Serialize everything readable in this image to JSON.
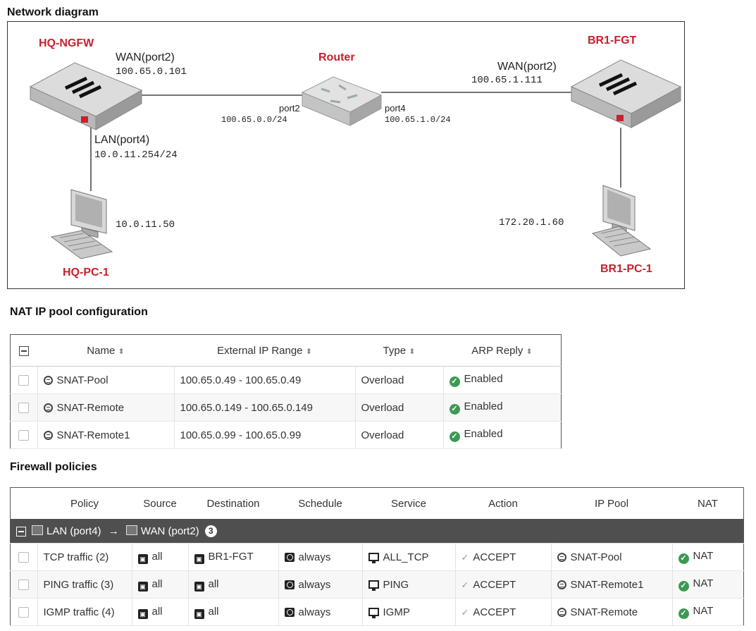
{
  "sections": {
    "network_title": "Network diagram",
    "pool_title": "NAT IP pool configuration",
    "policy_title": "Firewall policies"
  },
  "diagram": {
    "devices": {
      "hq_fw": "HQ-NGFW",
      "router": "Router",
      "br_fw": "BR1-FGT",
      "hq_pc": "HQ-PC-1",
      "br_pc": "BR1-PC-1"
    },
    "hq_wan": {
      "name": "WAN(port2)",
      "ip": "100.65.0.101"
    },
    "hq_lan": {
      "name": "LAN(port4)",
      "ip": "10.0.11.254/24"
    },
    "router_port2": {
      "name": "port2",
      "ip": "100.65.0.0/24"
    },
    "router_port4": {
      "name": "port4",
      "ip": "100.65.1.0/24"
    },
    "br_wan": {
      "name": "WAN(port2)",
      "ip": "100.65.1.111"
    },
    "hq_pc_ip": "10.0.11.50",
    "br_pc_ip": "172.20.1.60"
  },
  "pool_table": {
    "headers": {
      "name": "Name",
      "range": "External IP Range",
      "type": "Type",
      "arp": "ARP Reply"
    },
    "rows": [
      {
        "name": "SNAT-Pool",
        "range": "100.65.0.49 - 100.65.0.49",
        "type": "Overload",
        "arp": "Enabled"
      },
      {
        "name": "SNAT-Remote",
        "range": "100.65.0.149 - 100.65.0.149",
        "type": "Overload",
        "arp": "Enabled"
      },
      {
        "name": "SNAT-Remote1",
        "range": "100.65.0.99 - 100.65.0.99",
        "type": "Overload",
        "arp": "Enabled"
      }
    ]
  },
  "policy_table": {
    "headers": {
      "policy": "Policy",
      "source": "Source",
      "destination": "Destination",
      "schedule": "Schedule",
      "service": "Service",
      "action": "Action",
      "pool": "IP Pool",
      "nat": "NAT"
    },
    "group": {
      "from": "LAN (port4)",
      "arrow": "→",
      "to": "WAN (port2)",
      "count": "3"
    },
    "rows": [
      {
        "policy": "TCP traffic (2)",
        "source": "all",
        "destination": "BR1-FGT",
        "schedule": "always",
        "service": "ALL_TCP",
        "action": "ACCEPT",
        "pool": "SNAT-Pool",
        "nat": "NAT"
      },
      {
        "policy": "PING traffic (3)",
        "source": "all",
        "destination": "all",
        "schedule": "always",
        "service": "PING",
        "action": "ACCEPT",
        "pool": "SNAT-Remote1",
        "nat": "NAT"
      },
      {
        "policy": "IGMP traffic (4)",
        "source": "all",
        "destination": "all",
        "schedule": "always",
        "service": "IGMP",
        "action": "ACCEPT",
        "pool": "SNAT-Remote",
        "nat": "NAT"
      }
    ]
  },
  "icons": {
    "collapse": "collapse-icon",
    "sort": "sort-icon",
    "pool": "ip-pool-icon",
    "check": "check-circle-icon",
    "interface": "interface-icon",
    "address": "address-icon",
    "schedule": "schedule-icon",
    "service": "service-icon",
    "accept": "accept-check-icon"
  },
  "colors": {
    "device_label": "#c8202e",
    "enabled": "#3c9a52",
    "group_bar": "#4f4f4f"
  }
}
